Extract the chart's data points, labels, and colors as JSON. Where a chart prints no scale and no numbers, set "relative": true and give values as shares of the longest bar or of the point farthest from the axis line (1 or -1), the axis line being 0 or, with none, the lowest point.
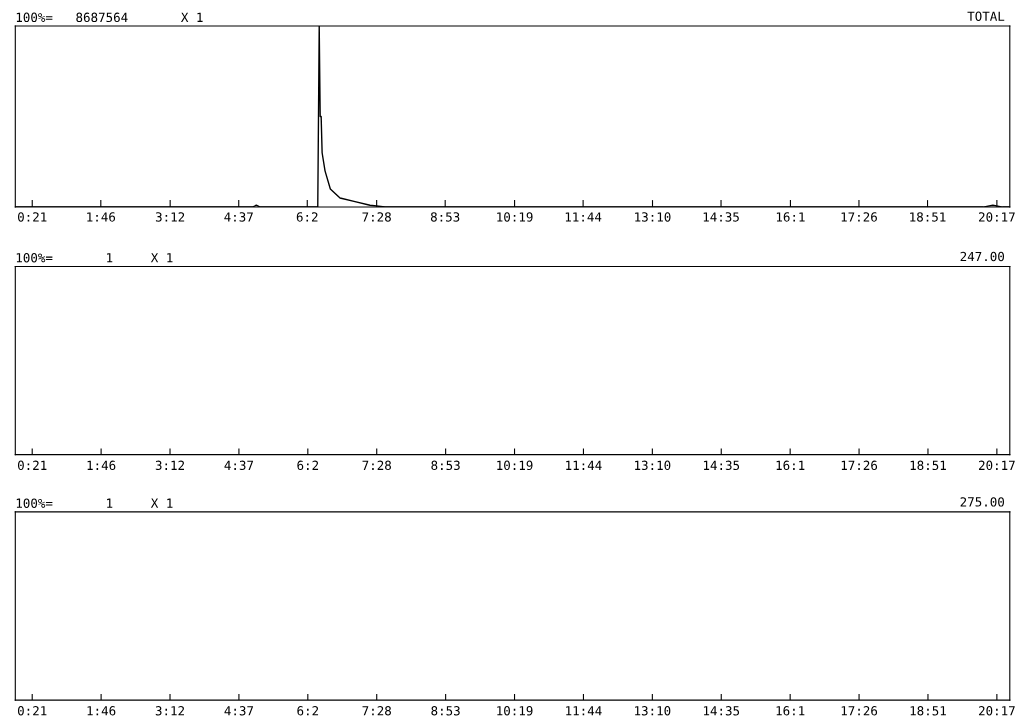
{
  "chart_data": [
    {
      "type": "line",
      "title": "100%=   8687564       X 1",
      "annotations": [
        "TOTAL"
      ],
      "relative": true,
      "tick_labels": "x",
      "color": "#000000",
      "x": [
        0,
        4.9,
        4.98,
        5.06,
        6.25,
        6.28,
        6.3,
        6.32,
        6.34,
        6.4,
        6.51,
        6.71,
        7.02,
        7.33,
        7.64,
        20.0,
        20.2,
        20.4,
        20.55
      ],
      "values": [
        0,
        0,
        0.01,
        0,
        0,
        1.0,
        0.5,
        0.5,
        0.3,
        0.2,
        0.1,
        0.05,
        0.03,
        0.01,
        0,
        0,
        0.01,
        0,
        0
      ],
      "xlim": [
        0,
        20.55
      ],
      "xticks": [
        {
          "value": 0.35,
          "label": "0:21"
        },
        {
          "value": 1.767,
          "label": "1:46"
        },
        {
          "value": 3.2,
          "label": "3:12"
        },
        {
          "value": 4.617,
          "label": "4:37"
        },
        {
          "value": 6.033,
          "label": "6:2"
        },
        {
          "value": 7.467,
          "label": "7:28"
        },
        {
          "value": 8.883,
          "label": "8:53"
        },
        {
          "value": 10.317,
          "label": "10:19"
        },
        {
          "value": 11.733,
          "label": "11:44"
        },
        {
          "value": 13.167,
          "label": "13:10"
        },
        {
          "value": 14.583,
          "label": "14:35"
        },
        {
          "value": 16.017,
          "label": "16:1"
        },
        {
          "value": 17.433,
          "label": "17:26"
        },
        {
          "value": 18.85,
          "label": "18:51"
        },
        {
          "value": 20.283,
          "label": "20:17"
        }
      ]
    },
    {
      "type": "other",
      "title": "100%=       1     X 1",
      "annotations": [
        "247.00",
        "0:21",
        "1:46",
        "3:12",
        "4:37",
        "6:2",
        "7:28",
        "8:53",
        "10:19",
        "11:44",
        "13:10",
        "14:35",
        "16:1",
        "17:26",
        "18:51",
        "20:17"
      ]
    },
    {
      "type": "other",
      "title": "100%=       1     X 1",
      "annotations": [
        "275.00",
        "0:21",
        "1:46",
        "3:12",
        "4:37",
        "6:2",
        "7:28",
        "8:53",
        "10:19",
        "11:44",
        "13:10",
        "14:35",
        "16:1",
        "17:26",
        "18:51",
        "20:17"
      ]
    }
  ]
}
